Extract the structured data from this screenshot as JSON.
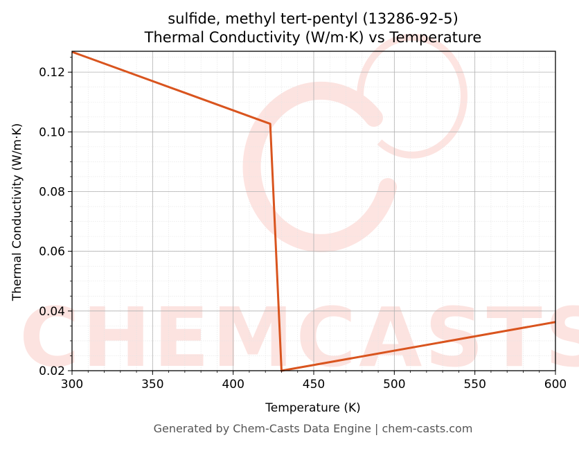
{
  "chart_data": {
    "type": "line",
    "title_line1": "sulfide, methyl tert-pentyl (13286-92-5)",
    "title_line2": "Thermal Conductivity (W/m·K) vs Temperature",
    "xlabel": "Temperature (K)",
    "ylabel": "Thermal Conductivity (W/m·K)",
    "xlim": [
      300,
      600
    ],
    "ylim": [
      0.02,
      0.127
    ],
    "xticks": [
      300,
      350,
      400,
      450,
      500,
      550,
      600
    ],
    "xtick_labels": [
      "300",
      "350",
      "400",
      "450",
      "500",
      "550",
      "600"
    ],
    "yticks": [
      0.02,
      0.04,
      0.06,
      0.08,
      0.1,
      0.12
    ],
    "ytick_labels": [
      "0.02",
      "0.04",
      "0.06",
      "0.08",
      "0.10",
      "0.12"
    ],
    "grid": true,
    "series": [
      {
        "color": "#d9541e",
        "x": [
          300,
          423,
          430,
          600
        ],
        "y": [
          0.1268,
          0.1027,
          0.02,
          0.0363
        ]
      }
    ]
  },
  "watermark": "CHEMCASTS",
  "footer": "Generated by Chem-Casts Data Engine | chem-casts.com"
}
